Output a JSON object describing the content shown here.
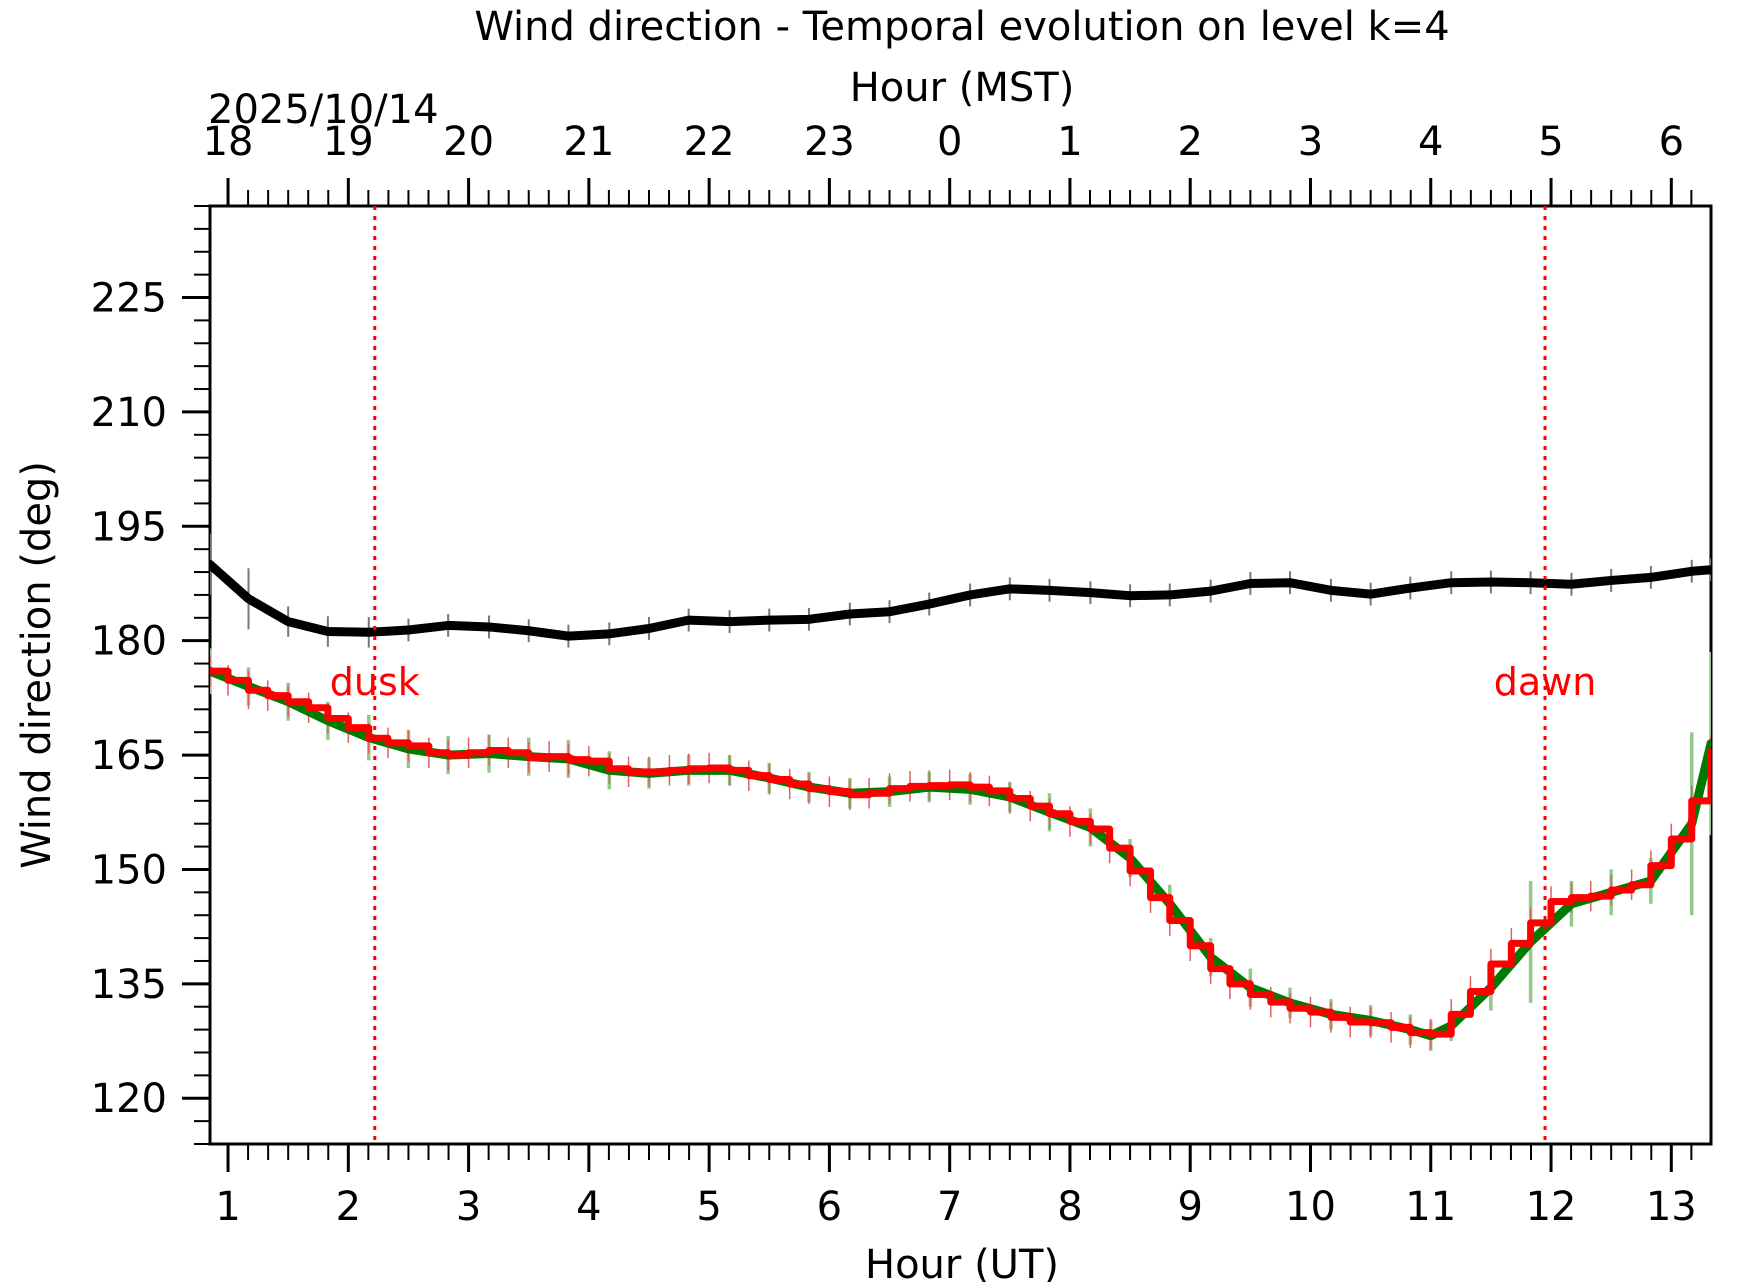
{
  "chart_data": {
    "type": "line",
    "title": "Wind direction - Temporal evolution on level k=4",
    "xlabel": "Hour (UT)",
    "ylabel": "Wind direction (deg)",
    "top_axis": {
      "label": "Hour (MST)",
      "date_label": "2025/10/14",
      "tick_labels": [
        "18",
        "19",
        "20",
        "21",
        "22",
        "23",
        "0",
        "1",
        "2",
        "3",
        "4",
        "5",
        "6"
      ],
      "offset_hours": -7
    },
    "xlim": [
      0.85,
      13.33
    ],
    "ylim": [
      114,
      237
    ],
    "x_ticks": [
      1,
      2,
      3,
      4,
      5,
      6,
      7,
      8,
      9,
      10,
      11,
      12,
      13
    ],
    "y_ticks": [
      120,
      135,
      150,
      165,
      180,
      195,
      210,
      225
    ],
    "grid": false,
    "colors": {
      "black_series": "#000000",
      "green_series": "#007a00",
      "green_errorbars": "#93c98b",
      "red_series": "#ff0000",
      "event_lines": "#ff0000"
    },
    "events": [
      {
        "label": "dusk",
        "x": 2.22
      },
      {
        "label": "dawn",
        "x": 11.95
      }
    ],
    "series": [
      {
        "color": "#000000",
        "x": [
          0.85,
          1.17,
          1.5,
          1.83,
          2.17,
          2.5,
          2.83,
          3.17,
          3.5,
          3.83,
          4.17,
          4.5,
          4.83,
          5.17,
          5.5,
          5.83,
          6.17,
          6.5,
          6.83,
          7.17,
          7.5,
          7.83,
          8.17,
          8.5,
          8.83,
          9.17,
          9.5,
          9.83,
          10.17,
          10.5,
          10.83,
          11.17,
          11.5,
          11.83,
          12.17,
          12.5,
          12.83,
          13.17,
          13.33
        ],
        "y": [
          190,
          185.5,
          182.5,
          181.2,
          181.1,
          181.4,
          182.0,
          181.8,
          181.3,
          180.6,
          180.9,
          181.6,
          182.7,
          182.5,
          182.7,
          182.8,
          183.5,
          183.8,
          184.8,
          186.0,
          186.8,
          186.6,
          186.3,
          185.9,
          186.0,
          186.5,
          187.5,
          187.6,
          186.6,
          186.1,
          186.9,
          187.6,
          187.7,
          187.6,
          187.4,
          187.9,
          188.3,
          189.1,
          189.3
        ],
        "errors": [
          4,
          4,
          2,
          2,
          2,
          1.5,
          1.5,
          1.5,
          1.5,
          1.5,
          1.5,
          1.5,
          1.5,
          1.5,
          1.5,
          1.5,
          1.5,
          1.5,
          1.5,
          1.5,
          1.5,
          1.5,
          1.5,
          1.5,
          1.5,
          1.5,
          1.5,
          1.5,
          1.5,
          1.5,
          1.5,
          1.5,
          1.5,
          1.5,
          1.5,
          1.5,
          1.5,
          1.5,
          1.5
        ]
      },
      {
        "color": "#007a00",
        "x": [
          0.85,
          1.17,
          1.5,
          1.83,
          2.17,
          2.5,
          2.83,
          3.17,
          3.5,
          3.83,
          4.17,
          4.5,
          4.83,
          5.17,
          5.5,
          5.83,
          6.17,
          6.5,
          6.83,
          7.17,
          7.5,
          7.83,
          8.17,
          8.5,
          8.83,
          9.17,
          9.5,
          9.83,
          10.17,
          10.5,
          10.83,
          11.0,
          11.17,
          11.5,
          11.83,
          12.17,
          12.5,
          12.83,
          13.17,
          13.33
        ],
        "y": [
          176,
          174.0,
          172.0,
          169.5,
          167.3,
          165.8,
          165.0,
          165.2,
          164.8,
          164.5,
          163.0,
          162.6,
          163.0,
          163.0,
          162.0,
          160.8,
          160.0,
          160.2,
          160.8,
          160.5,
          159.5,
          157.5,
          155.5,
          151.5,
          145.5,
          138.5,
          134.5,
          132.5,
          131.0,
          130.2,
          129.0,
          128.2,
          129.5,
          134.5,
          140.5,
          145.5,
          147.0,
          148.5,
          156.0,
          166.5
        ],
        "errors": [
          3,
          2.5,
          2.5,
          2.5,
          3,
          2.5,
          2.5,
          2.5,
          2.5,
          2.5,
          2.5,
          2,
          2,
          2,
          2,
          2,
          2,
          2,
          2,
          2,
          2,
          2.5,
          2.5,
          2.5,
          2.5,
          2.5,
          2.5,
          2,
          2,
          2,
          2,
          2,
          2,
          3,
          8,
          3,
          3,
          3,
          12,
          12
        ]
      },
      {
        "color": "#ff0000",
        "x": [
          0.85,
          1.0,
          1.17,
          1.33,
          1.5,
          1.67,
          1.83,
          2.0,
          2.17,
          2.33,
          2.5,
          2.67,
          2.83,
          3.0,
          3.17,
          3.33,
          3.5,
          3.67,
          3.83,
          4.0,
          4.17,
          4.33,
          4.5,
          4.67,
          4.83,
          5.0,
          5.17,
          5.33,
          5.5,
          5.67,
          5.83,
          6.0,
          6.17,
          6.33,
          6.5,
          6.67,
          6.83,
          7.0,
          7.17,
          7.33,
          7.5,
          7.67,
          7.83,
          8.0,
          8.17,
          8.33,
          8.5,
          8.67,
          8.83,
          9.0,
          9.17,
          9.33,
          9.5,
          9.67,
          9.83,
          10.0,
          10.17,
          10.33,
          10.5,
          10.67,
          10.83,
          11.0,
          11.17,
          11.33,
          11.5,
          11.67,
          11.83,
          12.0,
          12.17,
          12.33,
          12.5,
          12.67,
          12.83,
          13.0,
          13.17,
          13.33
        ],
        "y": [
          176,
          174.8,
          173.5,
          172.8,
          172.0,
          171.2,
          169.8,
          168.6,
          167.2,
          166.6,
          166.2,
          165.3,
          165.0,
          165.3,
          165.6,
          165.3,
          164.7,
          164.8,
          164.4,
          164.2,
          163.2,
          162.8,
          162.8,
          163.0,
          163.2,
          163.3,
          163.0,
          162.3,
          161.8,
          161.2,
          160.6,
          160.2,
          159.8,
          160.0,
          160.6,
          160.9,
          161.0,
          161.1,
          160.8,
          160.3,
          159.3,
          158.3,
          157.3,
          156.3,
          155.3,
          152.8,
          149.8,
          146.3,
          143.3,
          140.0,
          137.0,
          135.0,
          133.6,
          132.6,
          131.8,
          131.3,
          130.6,
          130.0,
          129.9,
          129.3,
          128.6,
          128.4,
          131.0,
          134.0,
          137.6,
          140.3,
          143.0,
          145.8,
          146.3,
          146.5,
          147.3,
          148.0,
          150.5,
          154.0,
          159.0,
          165.5
        ],
        "errors": [
          2,
          2,
          2.5,
          2,
          2,
          2,
          2,
          2,
          2,
          2,
          2,
          2,
          2,
          2,
          2,
          2,
          2,
          2,
          2,
          2,
          2,
          2,
          2,
          2,
          2,
          2,
          2,
          2,
          2,
          2,
          2,
          2,
          2,
          2,
          2,
          2,
          2,
          2,
          2,
          2,
          2,
          2,
          2,
          2,
          2,
          2,
          2,
          2,
          2,
          2,
          2,
          2,
          2,
          2,
          2,
          2,
          2,
          2,
          2,
          2,
          2,
          2,
          2,
          2,
          2,
          2,
          2,
          2,
          2,
          2,
          2,
          2,
          2,
          2,
          2,
          2
        ]
      }
    ]
  }
}
